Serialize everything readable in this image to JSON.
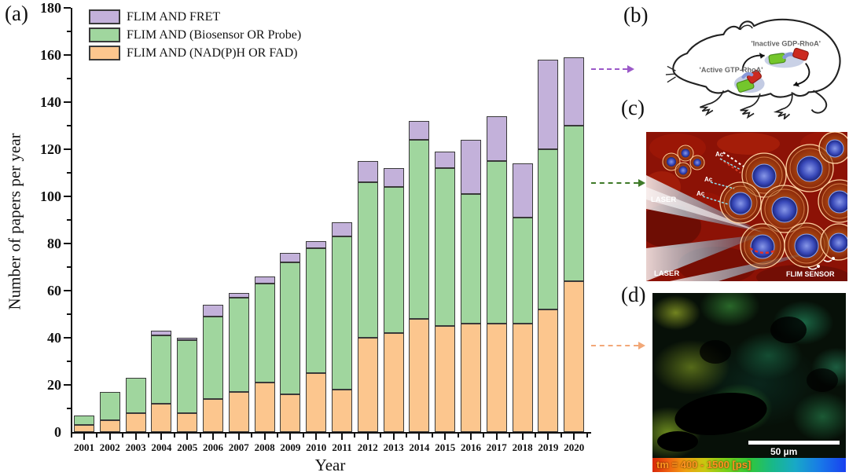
{
  "panels": {
    "a": {
      "label": "(a)"
    },
    "b": {
      "label": "(b)",
      "inactive_label": "'Inactive GDP-RhoA'",
      "active_label": "'Active GTP-RhoA'"
    },
    "c": {
      "label": "(c)",
      "laser_label": "LASER",
      "flim_sensor_label": "FLIM SENSOR",
      "ac_label": "Ac"
    },
    "d": {
      "label": "(d)",
      "scale_bar_label": "50 µm",
      "colorbar_label": "tm = 400 - 1500 [ps]"
    }
  },
  "chart_data": {
    "type": "bar",
    "stacked": true,
    "title": "",
    "xlabel": "Year",
    "ylabel": "Number of papers per year",
    "ylim": [
      0,
      180
    ],
    "ytick_interval": 20,
    "ytick_minor": 10,
    "grid": false,
    "legend_position": "top-left",
    "categories": [
      "2001",
      "2002",
      "2003",
      "2004",
      "2005",
      "2006",
      "2007",
      "2008",
      "2009",
      "2010",
      "2011",
      "2012",
      "2013",
      "2014",
      "2015",
      "2016",
      "2017",
      "2018",
      "2019",
      "2020"
    ],
    "series": [
      {
        "name": "FLIM AND FRET",
        "color": "#c3b1da",
        "values": [
          0,
          0,
          0,
          2,
          1,
          5,
          2,
          3,
          4,
          3,
          6,
          9,
          8,
          8,
          7,
          23,
          19,
          23,
          38,
          29
        ]
      },
      {
        "name": "FLIM AND (Biosensor OR Probe)",
        "color": "#a0d69e",
        "values": [
          4,
          12,
          15,
          29,
          31,
          35,
          40,
          42,
          56,
          53,
          65,
          66,
          62,
          76,
          67,
          55,
          69,
          45,
          68,
          66
        ]
      },
      {
        "name": "FLIM AND (NAD(P)H OR FAD)",
        "color": "#fcc68e",
        "values": [
          3,
          5,
          8,
          12,
          8,
          14,
          17,
          21,
          16,
          25,
          18,
          40,
          42,
          48,
          45,
          46,
          46,
          46,
          52,
          64
        ]
      }
    ],
    "stack_order_bottom_to_top": [
      "FLIM AND (NAD(P)H OR FAD)",
      "FLIM AND (Biosensor OR Probe)",
      "FLIM AND FRET"
    ],
    "totals": [
      7,
      17,
      23,
      43,
      40,
      54,
      59,
      66,
      76,
      81,
      89,
      115,
      112,
      132,
      119,
      124,
      134,
      114,
      158,
      159
    ]
  },
  "connectors": {
    "to_b_color": "#9b59c8",
    "to_c_color": "#3e7a28",
    "to_d_color": "#f2a878"
  }
}
